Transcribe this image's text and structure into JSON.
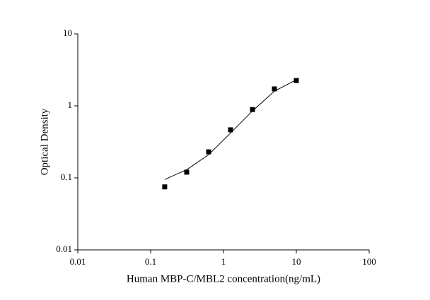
{
  "chart_data": {
    "type": "scatter",
    "x_label": "Human MBP-C/MBL2 concentration(ng/mL)",
    "y_label": "Optical Density",
    "log_x": true,
    "log_y": true,
    "xlim": [
      0.01,
      100
    ],
    "ylim": [
      0.01,
      10
    ],
    "xticks": [
      0.01,
      0.1,
      1,
      10,
      100
    ],
    "yticks": [
      0.01,
      0.1,
      1,
      10
    ],
    "series": [
      {
        "mode": "markers",
        "color": "#000000",
        "x": [
          0.156,
          0.3125,
          0.625,
          1.25,
          2.5,
          5,
          10
        ],
        "values": [
          0.075,
          0.12,
          0.23,
          0.465,
          0.89,
          1.72,
          2.25
        ]
      },
      {
        "mode": "line",
        "color": "#000000",
        "x": [
          0.156,
          0.3125,
          0.625,
          1.25,
          2.5,
          5,
          10
        ],
        "values": [
          0.095,
          0.13,
          0.21,
          0.42,
          0.85,
          1.6,
          2.3
        ]
      }
    ]
  }
}
